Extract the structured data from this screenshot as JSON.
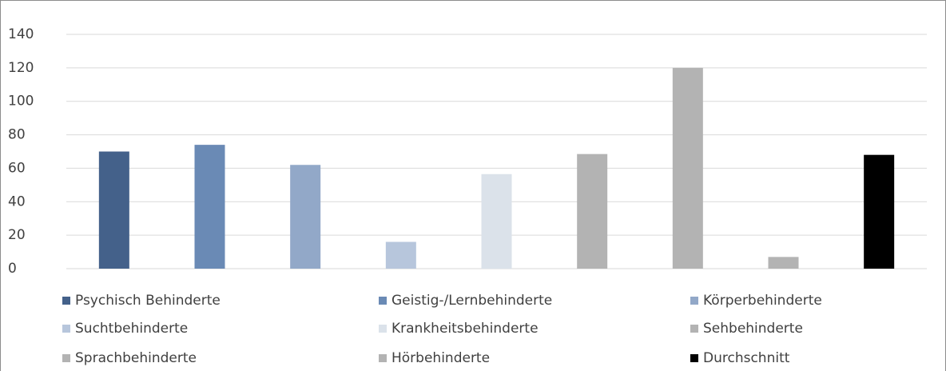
{
  "chart_data": {
    "type": "bar",
    "categories": [
      null
    ],
    "series": [
      {
        "name": "Psychisch Behinderte",
        "color": "#44618a",
        "values": [
          70
        ]
      },
      {
        "name": "Geistig-/Lernbehinderte",
        "color": "#6a8ab5",
        "values": [
          74
        ]
      },
      {
        "name": "Körperbehinderte",
        "color": "#92a8c8",
        "values": [
          62
        ]
      },
      {
        "name": "Suchtbehinderte",
        "color": "#b7c6dc",
        "values": [
          16
        ]
      },
      {
        "name": "Krankheitsbehinderte",
        "color": "#dbe2ea",
        "values": [
          56.5
        ]
      },
      {
        "name": "Sehbehinderte",
        "color": "#b3b3b3",
        "values": [
          68.5
        ]
      },
      {
        "name": "Sprachbehinderte",
        "color": "#b3b3b3",
        "values": [
          120
        ]
      },
      {
        "name": "Hörbehinderte",
        "color": "#b3b3b3",
        "values": [
          7
        ]
      },
      {
        "name": "Durchschnitt",
        "color": "#000000",
        "values": [
          68
        ]
      }
    ],
    "ylim": [
      0,
      140
    ],
    "yticks": [
      0,
      20,
      40,
      60,
      80,
      100,
      120,
      140
    ],
    "grid": true,
    "legend": "bottom"
  }
}
